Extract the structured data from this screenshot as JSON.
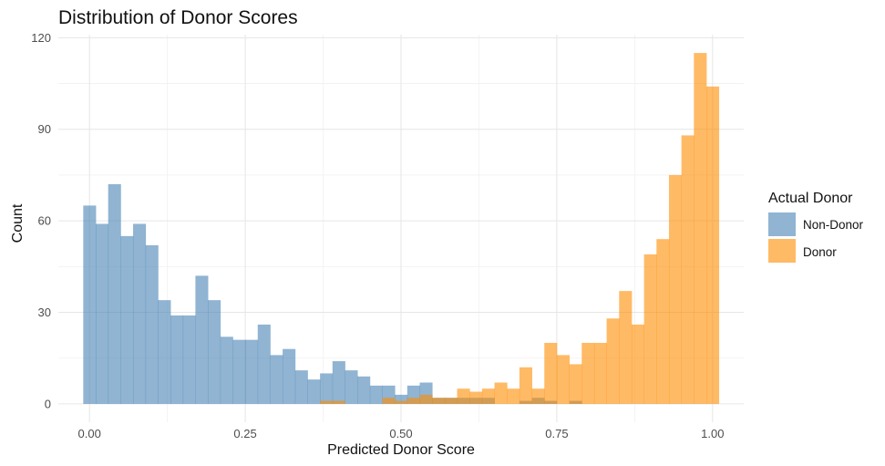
{
  "chart_data": {
    "type": "histogram",
    "title": "Distribution of Donor Scores",
    "xlabel": "Predicted Donor Score",
    "ylabel": "Count",
    "xlim": [
      -0.05,
      1.05
    ],
    "ylim": [
      -6,
      121
    ],
    "bin_width": 0.02,
    "x_ticks": [
      0.0,
      0.25,
      0.5,
      0.75,
      1.0
    ],
    "x_tick_labels": [
      "0.00",
      "0.25",
      "0.50",
      "0.75",
      "1.00"
    ],
    "y_ticks": [
      0,
      30,
      60,
      90,
      120
    ],
    "y_tick_labels": [
      "0",
      "30",
      "60",
      "90",
      "120"
    ],
    "grid": true,
    "legend": {
      "title": "Actual Donor",
      "placement": "right"
    },
    "series": [
      {
        "name": "Non-Donor",
        "color": "#4682B4",
        "opacity": 0.6,
        "bin_starts": [
          -0.01,
          0.01,
          0.03,
          0.05,
          0.07,
          0.09,
          0.11,
          0.13,
          0.15,
          0.17,
          0.19,
          0.21,
          0.23,
          0.25,
          0.27,
          0.29,
          0.31,
          0.33,
          0.35,
          0.37,
          0.39,
          0.41,
          0.43,
          0.45,
          0.47,
          0.49,
          0.51,
          0.53,
          0.55,
          0.57,
          0.59,
          0.61,
          0.63,
          0.69,
          0.71,
          0.73,
          0.77
        ],
        "counts": [
          65,
          59,
          72,
          55,
          59,
          52,
          34,
          29,
          29,
          42,
          34,
          22,
          21,
          21,
          26,
          16,
          18,
          11,
          8,
          10,
          14,
          11,
          9,
          6,
          6,
          3,
          6,
          7,
          2,
          2,
          2,
          2,
          2,
          1,
          2,
          1,
          1
        ]
      },
      {
        "name": "Donor",
        "color": "#FF8C00",
        "opacity": 0.6,
        "bin_starts": [
          0.37,
          0.39,
          0.47,
          0.49,
          0.51,
          0.53,
          0.55,
          0.57,
          0.59,
          0.61,
          0.63,
          0.65,
          0.67,
          0.69,
          0.71,
          0.73,
          0.75,
          0.77,
          0.79,
          0.81,
          0.83,
          0.85,
          0.87,
          0.89,
          0.91,
          0.93,
          0.95,
          0.97,
          0.99
        ],
        "counts": [
          1,
          1,
          2,
          1,
          2,
          3,
          2,
          2,
          5,
          4,
          5,
          7,
          5,
          12,
          5,
          20,
          16,
          13,
          20,
          20,
          28,
          37,
          26,
          49,
          54,
          75,
          88,
          115,
          104
        ]
      }
    ]
  }
}
